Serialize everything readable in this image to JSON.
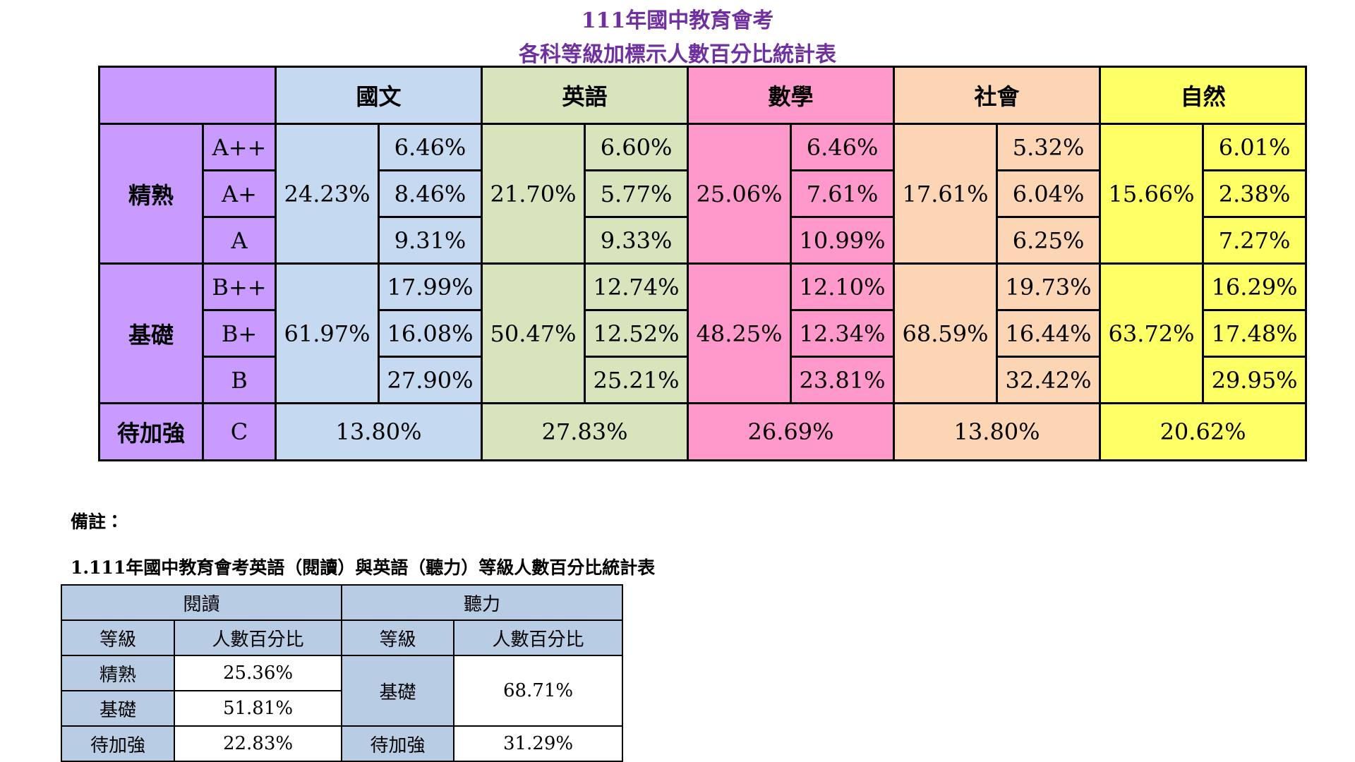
{
  "title": [
    "111年國中教育會考",
    "各科等級加標示人數百分比統計表"
  ],
  "levels": [
    {
      "name": "精熟",
      "grades": [
        "A++",
        "A+",
        "A"
      ]
    },
    {
      "name": "基礎",
      "grades": [
        "B++",
        "B+",
        "B"
      ]
    },
    {
      "name": "待加強",
      "grades": [
        "C"
      ]
    }
  ],
  "level_color": "#c99bff",
  "subjects": [
    {
      "name": "國文",
      "color": "#c5d9f1",
      "level_totals": [
        "24.23%",
        "61.97%"
      ],
      "grades": [
        [
          "6.46%",
          "8.46%",
          "9.31%"
        ],
        [
          "17.99%",
          "16.08%",
          "27.90%"
        ]
      ],
      "c": "13.80%"
    },
    {
      "name": "英語",
      "color": "#d8e4bc",
      "level_totals": [
        "21.70%",
        "50.47%"
      ],
      "grades": [
        [
          "6.60%",
          "5.77%",
          "9.33%"
        ],
        [
          "12.74%",
          "12.52%",
          "25.21%"
        ]
      ],
      "c": "27.83%"
    },
    {
      "name": "數學",
      "color": "#ff99cc",
      "level_totals": [
        "25.06%",
        "48.25%"
      ],
      "grades": [
        [
          "6.46%",
          "7.61%",
          "10.99%"
        ],
        [
          "12.10%",
          "12.34%",
          "23.81%"
        ]
      ],
      "c": "26.69%"
    },
    {
      "name": "社會",
      "color": "#fcd5b4",
      "level_totals": [
        "17.61%",
        "68.59%"
      ],
      "grades": [
        [
          "5.32%",
          "6.04%",
          "6.25%"
        ],
        [
          "19.73%",
          "16.44%",
          "32.42%"
        ]
      ],
      "c": "13.80%"
    },
    {
      "name": "自然",
      "color": "#ffff66",
      "level_totals": [
        "15.66%",
        "63.72%"
      ],
      "grades": [
        [
          "6.01%",
          "2.38%",
          "7.27%"
        ],
        [
          "16.29%",
          "17.48%",
          "29.95%"
        ]
      ],
      "c": "20.62%"
    }
  ],
  "note_label": "備註：",
  "note_title": "1.111年國中教育會考英語（閱讀）與英語（聽力）等級人數百分比統計表",
  "english_table": {
    "reading": {
      "name": "閱讀",
      "columns": [
        "等級",
        "人數百分比"
      ],
      "rows": [
        [
          "精熟",
          "25.36%"
        ],
        [
          "基礎",
          "51.81%"
        ],
        [
          "待加強",
          "22.83%"
        ]
      ]
    },
    "listening": {
      "name": "聽力",
      "columns": [
        "等級",
        "人數百分比"
      ],
      "rows": [
        [
          "基礎",
          "68.71%"
        ],
        [
          "待加強",
          "31.29%"
        ]
      ]
    }
  }
}
